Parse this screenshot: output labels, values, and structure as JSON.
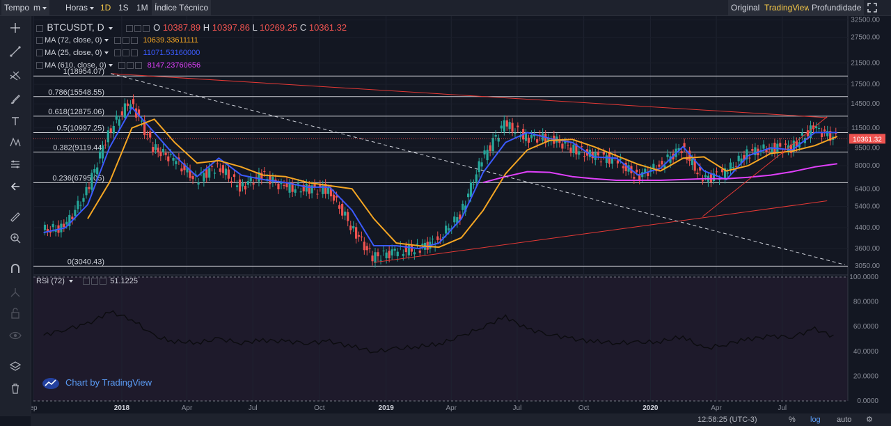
{
  "topbar": {
    "left": [
      {
        "label": "Tempo",
        "dark": true,
        "caret": false
      },
      {
        "label": "m",
        "dark": true,
        "caret": true
      },
      {
        "label": "Horas",
        "dark": false,
        "caret": true
      },
      {
        "label": "1D",
        "dark": false,
        "caret": false,
        "active": true
      },
      {
        "label": "1S",
        "dark": false,
        "caret": false
      },
      {
        "label": "1M",
        "dark": false,
        "caret": false
      },
      {
        "label": "Índice Técnico",
        "dark": true,
        "caret": false
      }
    ],
    "right": [
      {
        "label": "Original",
        "active": false
      },
      {
        "label": "TradingView",
        "active": true
      },
      {
        "label": "Profundidade",
        "active": false
      }
    ]
  },
  "legend": {
    "symbol": "BTCUSDT, D",
    "ohlc": [
      {
        "k": "O",
        "v": "10387.89"
      },
      {
        "k": "H",
        "v": "10397.86"
      },
      {
        "k": "L",
        "v": "10269.25"
      },
      {
        "k": "C",
        "v": "10361.32"
      }
    ],
    "ma": [
      {
        "label": "MA (72, close, 0)",
        "value": "10639.33611111",
        "color": "#f5a623"
      },
      {
        "label": "MA (25, close, 0)",
        "value": "11071.53160000",
        "color": "#3b5bff"
      },
      {
        "label": "MA (610, close, 0)",
        "value": "8147.23760656",
        "color": "#e040fb"
      }
    ],
    "rsi": {
      "label": "RSI (72)",
      "value": "51.1225"
    }
  },
  "watermark": "Chart by TradingView",
  "bottombar": {
    "time": "12:58:25 (UTC-3)",
    "pct": "%",
    "log": "log",
    "auto": "auto"
  },
  "colors": {
    "bg": "#131722",
    "up": "#26a69a",
    "down": "#ef5350",
    "accent": "#f7c948",
    "trend": "#e53935"
  },
  "chart_data": {
    "type": "line",
    "symbol": "BTCUSDT",
    "interval": "D",
    "price_scale": "log",
    "x_ticks": [
      "ep",
      "2018",
      "Apr",
      "Jul",
      "Oct",
      "2019",
      "Apr",
      "Jul",
      "Oct",
      "2020",
      "Apr",
      "Jul"
    ],
    "y_ticks": [
      "32500.00",
      "27500.00",
      "21500.00",
      "17500.00",
      "14500.00",
      "11500.00",
      "9500.00",
      "8000.00",
      "6400.00",
      "5400.00",
      "4400.00",
      "3600.00",
      "3050.00"
    ],
    "last_price": "10361.32",
    "fib_levels": [
      {
        "label": "1(18954.07)",
        "value": 18954.07
      },
      {
        "label": "0.786(15548.55)",
        "value": 15548.55
      },
      {
        "label": "0.618(12875.06)",
        "value": 12875.06
      },
      {
        "label": "0.5(10997.25)",
        "value": 10997.25
      },
      {
        "label": "0.382(9119.44)",
        "value": 9119.44
      },
      {
        "label": "0.236(6795.05)",
        "value": 6795.05
      },
      {
        "label": "0(3040.43)",
        "value": 3040.43
      }
    ],
    "x_dates": [
      "2017-09",
      "2017-10",
      "2017-11",
      "2017-12",
      "2018-01",
      "2018-02",
      "2018-03",
      "2018-04",
      "2018-05",
      "2018-06",
      "2018-07",
      "2018-08",
      "2018-09",
      "2018-10",
      "2018-11",
      "2018-12",
      "2019-01",
      "2019-02",
      "2019-03",
      "2019-04",
      "2019-05",
      "2019-06",
      "2019-07",
      "2019-08",
      "2019-09",
      "2019-10",
      "2019-11",
      "2019-12",
      "2020-01",
      "2020-02",
      "2020-03",
      "2020-04",
      "2020-05",
      "2020-06",
      "2020-07",
      "2020-08",
      "2020-09"
    ],
    "series": [
      {
        "name": "BTCUSDT",
        "color": "#26a69a",
        "values": [
          4300,
          4400,
          6200,
          11000,
          15000,
          9500,
          8500,
          7000,
          8000,
          6500,
          7300,
          6500,
          6400,
          6400,
          4500,
          3300,
          3500,
          3600,
          3900,
          5000,
          8500,
          12000,
          10500,
          10500,
          9500,
          8800,
          8500,
          7200,
          8000,
          9500,
          7000,
          7500,
          9000,
          9500,
          9500,
          11500,
          10400
        ]
      },
      {
        "name": "MA (25, close, 0)",
        "color": "#3b5bff",
        "values": [
          4200,
          4400,
          5500,
          9500,
          14000,
          11000,
          8800,
          7200,
          8600,
          7300,
          7000,
          6800,
          6500,
          6500,
          5200,
          3700,
          3700,
          3600,
          3800,
          4800,
          7500,
          10000,
          11000,
          10400,
          10000,
          8700,
          8600,
          7300,
          7800,
          9600,
          7600,
          7000,
          8800,
          9500,
          9300,
          11000,
          11000
        ]
      },
      {
        "name": "MA (72, close, 0)",
        "color": "#f5a623",
        "values": [
          null,
          null,
          4800,
          6800,
          11500,
          12500,
          10000,
          8200,
          8400,
          7900,
          7300,
          7200,
          6800,
          6600,
          6400,
          4800,
          3800,
          3700,
          3650,
          4000,
          5200,
          7400,
          9300,
          10200,
          10300,
          9600,
          8800,
          8100,
          7600,
          8600,
          8700,
          7600,
          8000,
          9000,
          9200,
          9700,
          10600
        ]
      },
      {
        "name": "MA (610, close, 0)",
        "color": "#e040fb",
        "values": [
          null,
          null,
          null,
          null,
          null,
          null,
          null,
          null,
          null,
          null,
          null,
          null,
          null,
          null,
          null,
          null,
          null,
          null,
          null,
          null,
          6800,
          7200,
          7550,
          7500,
          7200,
          7050,
          6950,
          6950,
          6950,
          7000,
          7050,
          7050,
          7150,
          7300,
          7550,
          7900,
          8150
        ]
      }
    ],
    "trendlines": [
      {
        "from": [
          "2017-12-17",
          19400
        ],
        "to": [
          "2020-09-01",
          12700
        ]
      },
      {
        "from": [
          "2018-12-15",
          3150
        ],
        "to": [
          "2020-09-01",
          5700
        ]
      },
      {
        "from": [
          "2020-03-13",
          4900
        ],
        "to": [
          "2020-09-01",
          12800
        ]
      }
    ],
    "rsi": {
      "name": "RSI (72)",
      "value": "51.1225",
      "y_ticks": [
        "100.0000",
        "80.0000",
        "60.0000",
        "40.0000",
        "20.0000",
        "0.0000"
      ],
      "ylim": [
        0,
        100
      ],
      "values": [
        53,
        58,
        62,
        72,
        66,
        52,
        48,
        47,
        50,
        47,
        49,
        48,
        47,
        48,
        44,
        40,
        42,
        44,
        46,
        52,
        60,
        68,
        58,
        54,
        50,
        48,
        47,
        47,
        48,
        52,
        42,
        46,
        50,
        52,
        52,
        58,
        51
      ]
    }
  }
}
